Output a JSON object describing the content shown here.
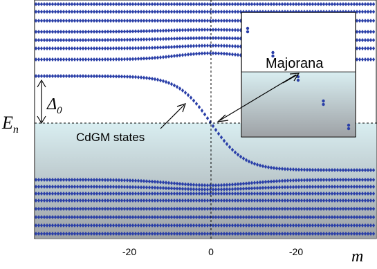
{
  "chart_data": {
    "type": "scatter",
    "title": "",
    "xlabel": "m",
    "ylabel": "E",
    "ylabel_sub": "n",
    "x_tick_labels": [
      "-20",
      "0",
      "-20"
    ],
    "xlim": [
      -38,
      38
    ],
    "grid": false,
    "series": [
      {
        "points_description": "discrete energy levels E_n vs angular momentum m; continuum above gap, CdGM branch crossing zero at m=0",
        "x_range": [
          -38,
          38
        ]
      }
    ],
    "annotations": {
      "gap_label": "Δ",
      "gap_sub": "0",
      "cdgm_label": "CdGM states",
      "majorana_label": "Majorana"
    },
    "inset": {
      "type": "scatter",
      "description": "zoom-in of lowest CdGM levels near zero energy",
      "points": [
        {
          "x": 1,
          "y": 5
        },
        {
          "x": 2,
          "y": 4
        },
        {
          "x": 3,
          "y": 3
        },
        {
          "x": 4,
          "y": 2
        },
        {
          "x": 5,
          "y": 1
        }
      ]
    },
    "colors": {
      "marker": "#2a3fa8",
      "gap_fill_top": "#d6ecef",
      "gap_fill_bottom": "#a8abb0"
    }
  }
}
